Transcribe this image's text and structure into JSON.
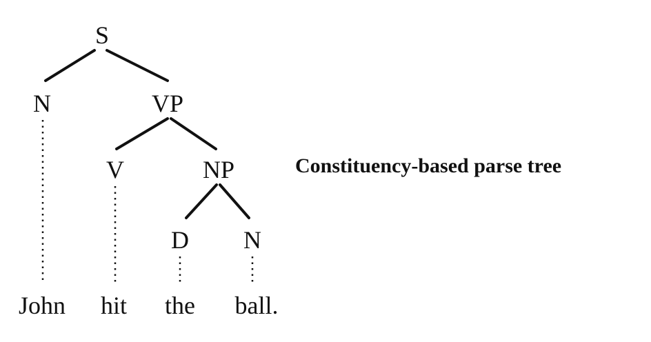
{
  "diagram": {
    "caption": "Constituency-based parse tree",
    "nodes": {
      "s": "S",
      "n_subject": "N",
      "vp": "VP",
      "v": "V",
      "np": "NP",
      "d": "D",
      "n_object": "N"
    },
    "words": {
      "john": "John",
      "hit": "hit",
      "the": "the",
      "ball": "ball."
    }
  }
}
